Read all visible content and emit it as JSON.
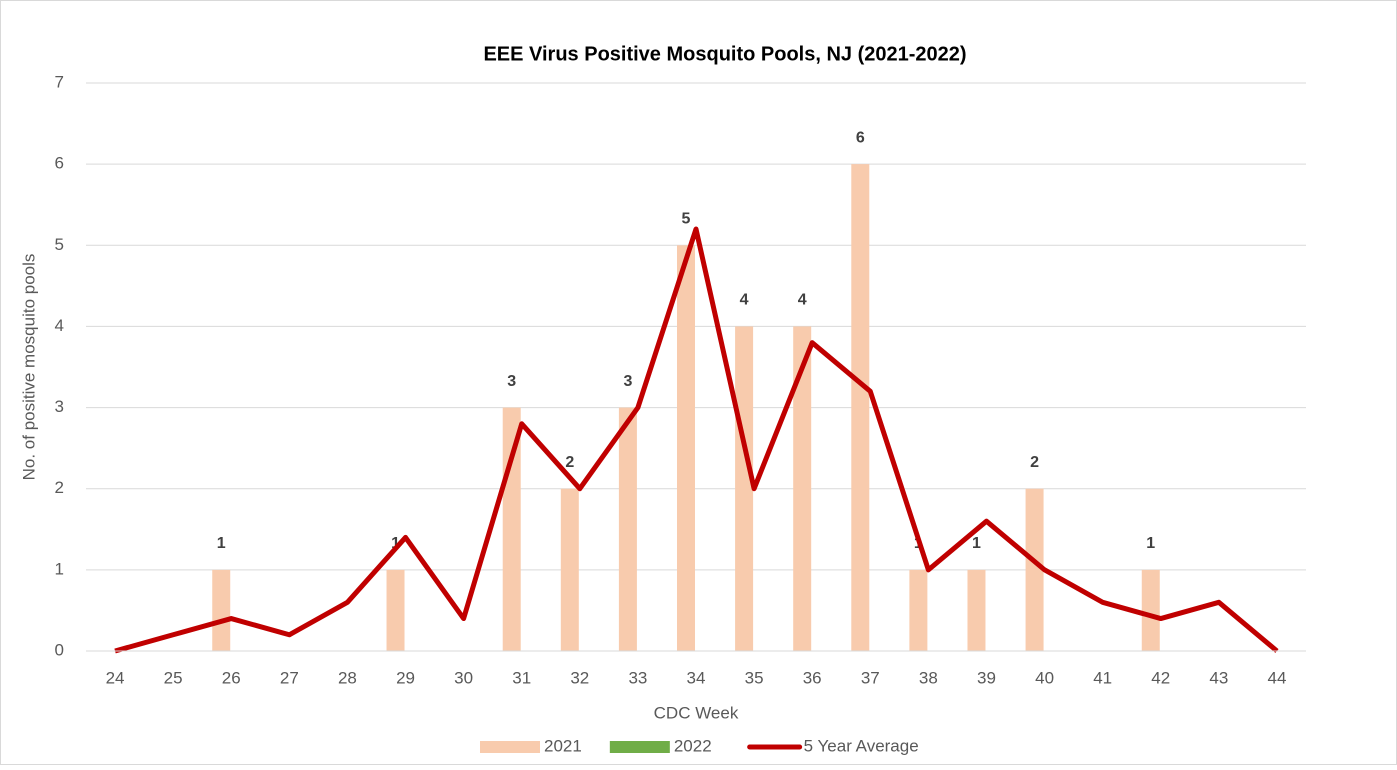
{
  "chart_data": {
    "type": "bar+line",
    "title": "EEE Virus Positive Mosquito Pools, NJ (2021-2022)",
    "x_label": "CDC Week",
    "y_label": "No. of positive mosquito pools",
    "categories": [
      "24",
      "25",
      "26",
      "27",
      "28",
      "29",
      "30",
      "31",
      "32",
      "33",
      "34",
      "35",
      "36",
      "37",
      "38",
      "39",
      "40",
      "41",
      "42",
      "43",
      "44"
    ],
    "series": [
      {
        "name": "2021",
        "type": "bar",
        "color": "#f8cbad",
        "values": [
          0,
          0,
          1,
          0,
          0,
          1,
          0,
          3,
          2,
          3,
          5,
          4,
          4,
          6,
          1,
          1,
          2,
          0,
          1,
          0,
          0
        ]
      },
      {
        "name": "2022",
        "type": "bar",
        "color": "#70ad47",
        "values": [
          0,
          0,
          0,
          0,
          0,
          0,
          0,
          0,
          0,
          0,
          0,
          0,
          0,
          0,
          0,
          0,
          0,
          0,
          0,
          0,
          0
        ]
      },
      {
        "name": "5 Year Average",
        "type": "line",
        "color": "#c00000",
        "values": [
          0,
          0.2,
          0.4,
          0.2,
          0.6,
          1.4,
          0.4,
          2.8,
          2.0,
          3.0,
          5.2,
          2.0,
          3.8,
          3.2,
          1.0,
          1.6,
          1.0,
          0.6,
          0.4,
          0.6,
          0
        ]
      }
    ],
    "ylim": [
      0,
      7
    ],
    "yticks": [
      0,
      1,
      2,
      3,
      4,
      5,
      6,
      7
    ],
    "grid": true,
    "legend": "bottom"
  }
}
